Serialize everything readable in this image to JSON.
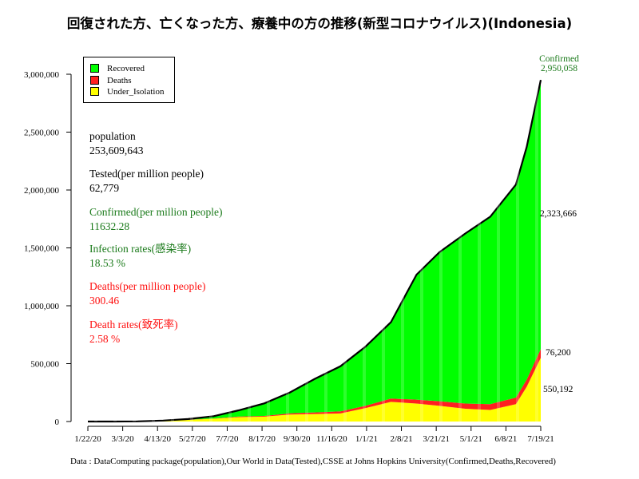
{
  "title": "回復された方、亡くなった方、療養中の方の推移(新型コロナウイルス)(Indonesia)",
  "legend": [
    {
      "label": "Recovered",
      "color": "#00ff00"
    },
    {
      "label": "Deaths",
      "color": "#ff2020"
    },
    {
      "label": "Under_Isolation",
      "color": "#ffff00"
    }
  ],
  "stats": {
    "population_label": "population",
    "population_value": "253,609,643",
    "tested_label": "Tested(per million people)",
    "tested_value": "62,779",
    "confirmed_label": "Confirmed(per million people)",
    "confirmed_value": "11632.28",
    "infection_label": "Infection rates(感染率)",
    "infection_value": "18.53 %",
    "deaths_label": "Deaths(per million people)",
    "deaths_value": "300.46",
    "deathrate_label": "Death rates(致死率)",
    "deathrate_value": "2.58 %"
  },
  "end_labels": {
    "confirmed_title": "Confirmed",
    "confirmed_value": "2,950,058",
    "recovered_value": "2,323,666",
    "deaths_value": "76,200",
    "isolation_value": "550,192"
  },
  "source": "Data : DataComputing package(population),Our World in Data(Tested),CSSE at Johns Hopkins University(Confirmed,Deaths,Recovered)",
  "colors": {
    "recovered": "#00ff00",
    "deaths": "#ff2020",
    "isolation": "#ffff00",
    "confirmed_line": "#000000"
  },
  "chart_data": {
    "type": "area",
    "stacked": true,
    "x": [
      "1/22/20",
      "2/22/20",
      "3/22/20",
      "4/22/20",
      "5/22/20",
      "6/22/20",
      "7/22/20",
      "8/22/20",
      "9/22/20",
      "10/22/20",
      "11/22/20",
      "12/22/20",
      "1/22/21",
      "2/22/21",
      "3/22/21",
      "4/22/21",
      "5/22/21",
      "6/22/21",
      "7/5/21",
      "7/22/21"
    ],
    "x_tick_labels": [
      "1/22/20",
      "3/3/20",
      "4/13/20",
      "5/27/20",
      "7/7/20",
      "8/17/20",
      "9/30/20",
      "11/16/20",
      "1/1/21",
      "2/8/21",
      "3/21/21",
      "5/1/21",
      "6/8/21",
      "7/19/21"
    ],
    "series": [
      {
        "name": "Under_Isolation",
        "values": [
          0,
          0,
          1000,
          6000,
          14000,
          24000,
          38000,
          42000,
          61000,
          65000,
          70000,
          115000,
          170000,
          155000,
          135000,
          110000,
          100000,
          150000,
          300000,
          550192
        ]
      },
      {
        "name": "Deaths",
        "values": [
          0,
          0,
          50,
          650,
          1350,
          2500,
          4500,
          6400,
          9700,
          13500,
          17500,
          20000,
          28000,
          34000,
          40000,
          45000,
          50000,
          57000,
          62000,
          76200
        ]
      },
      {
        "name": "Recovered",
        "values": [
          0,
          0,
          100,
          1500,
          6000,
          20000,
          54000,
          108000,
          180000,
          290000,
          390000,
          510000,
          660000,
          1080000,
          1290000,
          1470000,
          1620000,
          1840000,
          2010000,
          2323666
        ]
      }
    ],
    "confirmed_total": [
      0,
      0,
      1150,
      8150,
      21350,
      46500,
      96500,
      156400,
      250700,
      368500,
      477500,
      645000,
      858000,
      1269000,
      1465000,
      1625000,
      1770000,
      2047000,
      2372000,
      2950058
    ],
    "ylim": [
      0,
      3000000
    ],
    "y_ticks": [
      0,
      500000,
      1000000,
      1500000,
      2000000,
      2500000,
      3000000
    ],
    "y_tick_labels": [
      "0",
      "500,000",
      "1,000,000",
      "1,500,000",
      "2,000,000",
      "2,500,000",
      "3,000,000"
    ],
    "xlabel": "",
    "ylabel": ""
  }
}
